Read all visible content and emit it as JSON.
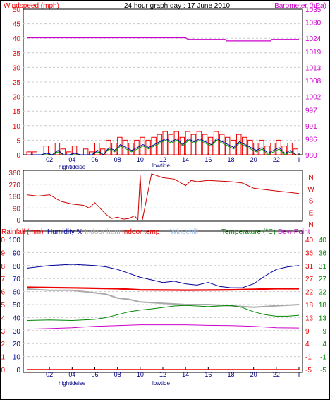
{
  "header": {
    "windspeed_label": "Windspeed (mph)",
    "title": "24 hour graph day : 17 June 2010",
    "barometer_label": "Barometer (hPa)"
  },
  "legend_bottom": {
    "rainfall": "Rainfall (mm)",
    "humidity": "Humidity %",
    "indoor_hum": "Indoor hum",
    "indoor_temp": "Indoor temp",
    "windchill": "Windchill",
    "temperature": "Temperature (°C)",
    "dew_point": "Dew Point"
  },
  "tide_labels": {
    "high": "hightideise",
    "low": "lowtide"
  },
  "colors": {
    "wind": "#ee0000",
    "gust_green": "#009900",
    "gust_blue": "#000099",
    "barometer": "#cc00cc",
    "direction": "#cc0000",
    "humidity": "#000099",
    "indoor_hum": "#aaaaaa",
    "indoor_temp": "#ee0000",
    "windchill": "#99bbdd",
    "temperature": "#008800",
    "dew_point": "#cc00cc",
    "grid": "#cccccc"
  },
  "chart_data": [
    {
      "type": "line",
      "name": "wind-and-barometer",
      "x_ticks": [
        "02",
        "04",
        "06",
        "08",
        "10",
        "12",
        "14",
        "16",
        "18",
        "20",
        "22",
        "I"
      ],
      "left_axis": {
        "label": "Windspeed (mph)",
        "ylim": [
          0,
          50
        ],
        "ticks": [
          0,
          5,
          10,
          15,
          20,
          25,
          30,
          35,
          40,
          45,
          50
        ]
      },
      "right_axis": {
        "label": "Barometer (hPa)",
        "ticks": [
          980,
          986,
          991,
          997,
          1002,
          1008,
          1013,
          1019,
          1024,
          1030,
          1035
        ],
        "ylim": [
          980,
          1035
        ]
      },
      "series": [
        {
          "name": "Barometer (hPa)",
          "axis": "right",
          "x": [
            0,
            14,
            14.2,
            17.5,
            17.6,
            21.5,
            21.6,
            24
          ],
          "values": [
            1024.2,
            1024.2,
            1023.6,
            1023.6,
            1023.0,
            1023.0,
            1023.6,
            1023.6
          ]
        }
      ],
      "wind_bars": {
        "hours": [
          0,
          0.5,
          1,
          1.5,
          2,
          2.5,
          3,
          3.5,
          4,
          4.5,
          5,
          5.5,
          6,
          6.5,
          7,
          7.5,
          8,
          8.5,
          9,
          9.5,
          10,
          10.5,
          11,
          11.5,
          12,
          12.5,
          13,
          13.5,
          14,
          14.5,
          15,
          15.5,
          16,
          16.5,
          17,
          17.5,
          18,
          18.5,
          19,
          19.5,
          20,
          20.5,
          21,
          21.5,
          22,
          22.5,
          23,
          23.5
        ],
        "values": [
          1,
          1,
          0,
          3,
          0,
          4,
          2,
          1,
          3,
          0,
          2,
          1,
          4,
          2,
          5,
          4,
          6,
          5,
          4,
          5,
          6,
          5,
          6,
          7,
          8,
          7,
          8,
          6,
          8,
          7,
          8,
          7,
          6,
          8,
          7,
          6,
          5,
          7,
          6,
          5,
          4,
          5,
          3,
          4,
          5,
          3,
          4,
          2
        ]
      }
    },
    {
      "type": "line",
      "name": "wind-direction",
      "x_ticks": [
        "02",
        "04",
        "06",
        "08",
        "10",
        "12",
        "14",
        "16",
        "18",
        "20",
        "22",
        "I"
      ],
      "left_axis": {
        "ylim": [
          0,
          360
        ],
        "ticks": [
          0,
          90,
          180,
          270,
          360
        ]
      },
      "right_axis": {
        "ticks": [
          "N",
          "W",
          "S",
          "E",
          "N"
        ]
      },
      "series": [
        {
          "name": "direction",
          "x": [
            0,
            1,
            2,
            3,
            4,
            5,
            5.5,
            6,
            7,
            7.5,
            8,
            8.5,
            9,
            9.5,
            9.8,
            10,
            10.2,
            11,
            12,
            13,
            14,
            14.5,
            15,
            16,
            17,
            18,
            19,
            20,
            21,
            22,
            23,
            24
          ],
          "values": [
            190,
            180,
            190,
            140,
            120,
            110,
            90,
            130,
            40,
            10,
            20,
            5,
            10,
            30,
            0,
            340,
            0,
            350,
            320,
            310,
            260,
            300,
            290,
            300,
            295,
            290,
            280,
            240,
            230,
            220,
            210,
            200
          ]
        }
      ]
    },
    {
      "type": "line",
      "name": "temperature-humidity",
      "x_ticks": [
        "02",
        "04",
        "06",
        "08",
        "10",
        "12",
        "14",
        "16",
        "18",
        "20",
        "22",
        "I"
      ],
      "axes": {
        "rainfall": [
          0,
          1,
          2,
          3,
          4,
          5,
          6,
          7,
          8,
          9,
          10
        ],
        "humidity": [
          0,
          10,
          20,
          30,
          40,
          50,
          60,
          70,
          80,
          90,
          100
        ],
        "temperature": [
          -5,
          -1,
          4,
          9,
          13,
          18,
          22,
          27,
          31,
          36,
          40
        ],
        "temperature_right": [
          -5,
          -1,
          4,
          9,
          13,
          18,
          22,
          27,
          31,
          36,
          40
        ]
      },
      "series": [
        {
          "name": "Humidity %",
          "x": [
            0,
            2,
            4,
            6,
            7,
            8,
            9,
            10,
            11,
            12,
            13,
            14,
            15,
            16,
            17,
            18,
            19,
            20,
            21,
            22,
            23,
            24
          ],
          "values": [
            78,
            80,
            81,
            80,
            79,
            77,
            74,
            71,
            69,
            67,
            68,
            66,
            65,
            67,
            64,
            63,
            63,
            66,
            72,
            77,
            79,
            80
          ]
        },
        {
          "name": "Indoor hum",
          "x": [
            0,
            2,
            4,
            6,
            7,
            8,
            9,
            10,
            12,
            14,
            16,
            18,
            20,
            22,
            24
          ],
          "values": [
            62,
            61,
            61,
            59,
            58,
            55,
            54,
            52,
            51,
            50,
            50,
            49,
            48,
            49,
            50
          ]
        },
        {
          "name": "Indoor temp",
          "x": [
            0,
            4,
            8,
            10,
            14,
            18,
            20,
            22,
            24
          ],
          "values": [
            23.5,
            23.3,
            23.0,
            22.6,
            22.5,
            22.6,
            22.8,
            23.0,
            23.0
          ]
        },
        {
          "name": "Temperature (°C)",
          "x": [
            0,
            2,
            4,
            6,
            7,
            8,
            9,
            10,
            11,
            12,
            13,
            14,
            15,
            16,
            17,
            18,
            19,
            20,
            21,
            22,
            23,
            24
          ],
          "values": [
            12.0,
            12.2,
            12.0,
            12.4,
            13.0,
            14.0,
            15.0,
            15.6,
            16.0,
            16.5,
            17.0,
            17.2,
            17.0,
            16.8,
            17.0,
            17.2,
            16.5,
            15.0,
            14.0,
            13.5,
            13.5,
            13.8
          ]
        },
        {
          "name": "Dew Point",
          "x": [
            0,
            2,
            4,
            6,
            8,
            10,
            12,
            14,
            16,
            18,
            20,
            22,
            24
          ],
          "values": [
            9.0,
            9.2,
            9.5,
            10.0,
            10.2,
            10.5,
            10.5,
            10.5,
            10.3,
            10.2,
            10.0,
            9.5,
            9.4
          ]
        },
        {
          "name": "Rainfall (mm)",
          "axis": "rainfall",
          "x": [
            0,
            24
          ],
          "values": [
            0,
            0
          ]
        }
      ]
    }
  ]
}
